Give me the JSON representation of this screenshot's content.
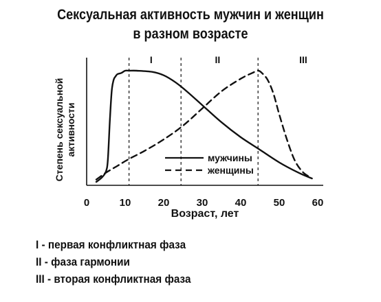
{
  "chart_data": {
    "type": "line",
    "title_lines": [
      "Сексуальная активность мужчин и женщин",
      "в разном возрасте"
    ],
    "xlabel": "Возраст, лет",
    "ylabel_lines": [
      "Степень сексуальной",
      "активности"
    ],
    "xlim": [
      0,
      60
    ],
    "ylim": [
      0,
      100
    ],
    "x_ticks": [
      "0",
      "10",
      "20",
      "30",
      "40",
      "50",
      "60"
    ],
    "grid": false,
    "legend_position": "center-right",
    "phase_boundaries": [
      11,
      24.5,
      44.5
    ],
    "phase_labels": [
      "I",
      "II",
      "III"
    ],
    "series": [
      {
        "name": "мужчины",
        "style": "solid",
        "x": [
          2.5,
          4,
          5,
          5.5,
          6,
          6.5,
          7,
          7.5,
          8,
          9,
          10,
          11,
          13,
          17,
          20,
          23,
          26,
          30,
          35,
          40,
          45,
          50,
          55,
          58.5
        ],
        "y": [
          3,
          7,
          12,
          22,
          55,
          82,
          92,
          95,
          97,
          98,
          100,
          100,
          100,
          99,
          96,
          90,
          82,
          70,
          55,
          42,
          31,
          20,
          11,
          6
        ]
      },
      {
        "name": "женщины",
        "style": "dashed",
        "x": [
          2.5,
          5,
          8,
          11,
          15,
          20,
          25,
          30,
          35,
          40,
          43,
          44.5,
          45.5,
          47,
          48.5,
          50,
          52,
          54,
          56,
          58
        ],
        "y": [
          5,
          11,
          17,
          23,
          30,
          40,
          52,
          67,
          82,
          93,
          98,
          100,
          98,
          92,
          80,
          62,
          40,
          22,
          12,
          7
        ]
      }
    ]
  }
}
